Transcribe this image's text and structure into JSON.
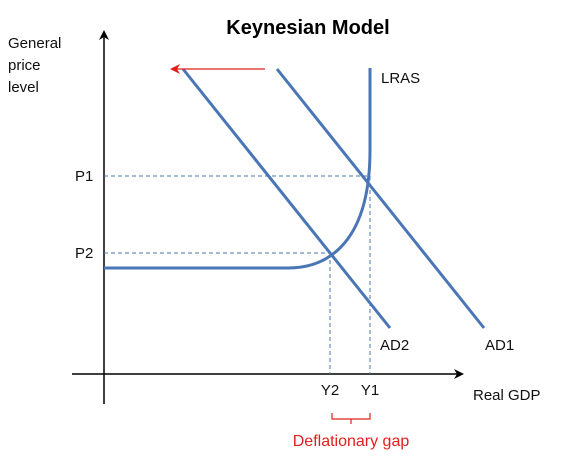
{
  "title": "Keynesian Model",
  "y_axis_label": [
    "General",
    "price",
    "level"
  ],
  "x_axis_label": "Real GDP",
  "curves": {
    "lras": "LRAS",
    "ad1": "AD1",
    "ad2": "AD2"
  },
  "price_levels": {
    "p1": "P1",
    "p2": "P2"
  },
  "output_levels": {
    "y1": "Y1",
    "y2": "Y2"
  },
  "gap_label": "Deflationary gap",
  "colors": {
    "curve": "#4a76b5",
    "axis": "#000000",
    "shift_arrow": "#e0201c",
    "gap": "#e0201c"
  }
}
